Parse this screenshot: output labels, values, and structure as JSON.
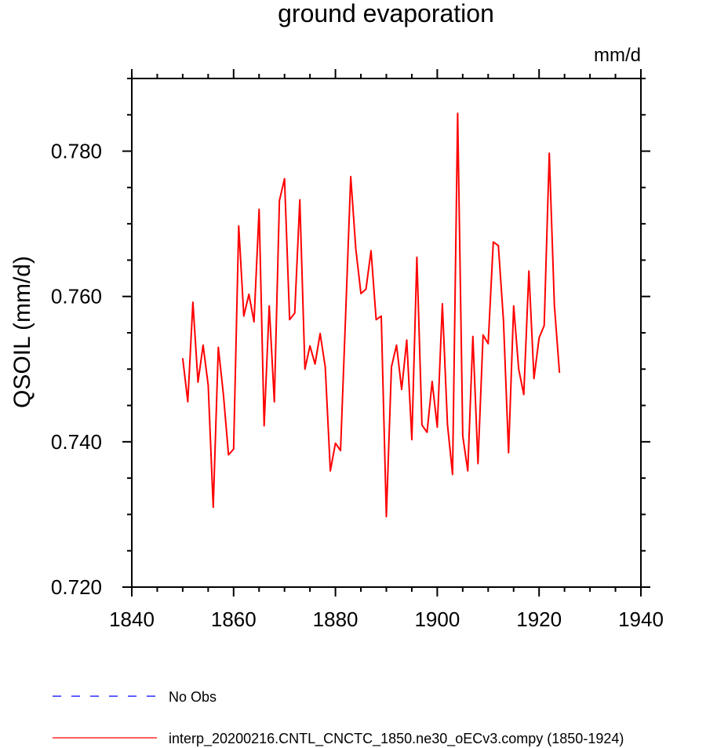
{
  "chart_data": {
    "type": "line",
    "title": "ground evaporation",
    "units": "mm/d",
    "ylabel": "QSOIL  (mm/d)",
    "xlabel": "",
    "xlim": [
      1840,
      1940
    ],
    "ylim": [
      0.72,
      0.79
    ],
    "x_ticks": [
      1840,
      1860,
      1880,
      1900,
      1920,
      1940
    ],
    "x_tick_labels": [
      "1840",
      "1860",
      "1880",
      "1900",
      "1920",
      "1940"
    ],
    "y_ticks": [
      0.72,
      0.74,
      0.76,
      0.78
    ],
    "y_tick_labels": [
      "0.720",
      "0.740",
      "0.760",
      "0.780"
    ],
    "grid": false,
    "legend_position": "bottom-left",
    "series": [
      {
        "name": "No Obs",
        "color": "#0000ff",
        "style": "dashed",
        "x": [],
        "y": []
      },
      {
        "name": "interp_20200216.CNTL_CNCTC_1850.ne30_oECv3.compy (1850-1924)",
        "color": "#ff0000",
        "style": "solid",
        "x": [
          1850,
          1851,
          1852,
          1853,
          1854,
          1855,
          1856,
          1857,
          1858,
          1859,
          1860,
          1861,
          1862,
          1863,
          1864,
          1865,
          1866,
          1867,
          1868,
          1869,
          1870,
          1871,
          1872,
          1873,
          1874,
          1875,
          1876,
          1877,
          1878,
          1879,
          1880,
          1881,
          1882,
          1883,
          1884,
          1885,
          1886,
          1887,
          1888,
          1889,
          1890,
          1891,
          1892,
          1893,
          1894,
          1895,
          1896,
          1897,
          1898,
          1899,
          1900,
          1901,
          1902,
          1903,
          1904,
          1905,
          1906,
          1907,
          1908,
          1909,
          1910,
          1911,
          1912,
          1913,
          1914,
          1915,
          1916,
          1917,
          1918,
          1919,
          1920,
          1921,
          1922,
          1923,
          1924
        ],
        "y": [
          0.7515,
          0.7455,
          0.7592,
          0.7482,
          0.7533,
          0.7478,
          0.731,
          0.753,
          0.7465,
          0.7382,
          0.739,
          0.7697,
          0.7573,
          0.7603,
          0.7565,
          0.772,
          0.7422,
          0.7587,
          0.7455,
          0.7732,
          0.7762,
          0.7568,
          0.7577,
          0.7733,
          0.75,
          0.7532,
          0.7507,
          0.7549,
          0.7503,
          0.736,
          0.7398,
          0.7388,
          0.7575,
          0.7765,
          0.7665,
          0.7604,
          0.761,
          0.7663,
          0.7568,
          0.7573,
          0.7297,
          0.7503,
          0.7533,
          0.7472,
          0.754,
          0.7403,
          0.7654,
          0.7423,
          0.7413,
          0.7483,
          0.742,
          0.759,
          0.7424,
          0.7355,
          0.7852,
          0.7408,
          0.736,
          0.7545,
          0.737,
          0.7547,
          0.7535,
          0.7675,
          0.767,
          0.7567,
          0.7385,
          0.7587,
          0.75,
          0.7465,
          0.7635,
          0.7487,
          0.7543,
          0.756,
          0.7797,
          0.7588,
          0.7495
        ]
      }
    ]
  }
}
